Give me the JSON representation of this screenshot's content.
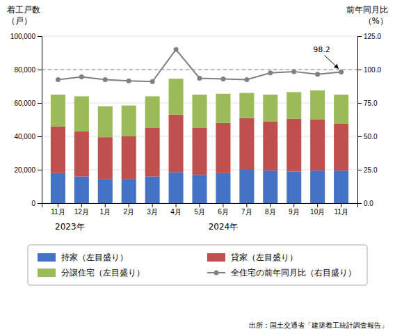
{
  "chart_data": {
    "type": "bar",
    "stacked": true,
    "categories": [
      "11月",
      "12月",
      "1月",
      "2月",
      "3月",
      "4月",
      "5月",
      "6月",
      "7月",
      "8月",
      "9月",
      "10月",
      "11月"
    ],
    "series": [
      {
        "name": "持家（左目盛り）",
        "color": "#4472C4",
        "values": [
          18000,
          16000,
          14500,
          14500,
          16000,
          18500,
          17000,
          18000,
          20000,
          19500,
          19000,
          19500,
          19500
        ]
      },
      {
        "name": "貸家（左目盛り）",
        "color": "#C0504D",
        "values": [
          28000,
          27000,
          25000,
          25500,
          29000,
          34500,
          28000,
          30000,
          31000,
          29500,
          31500,
          30500,
          28000
        ]
      },
      {
        "name": "分譲住宅（左目盛り）",
        "color": "#9BBB59",
        "values": [
          19000,
          21000,
          18500,
          18500,
          19000,
          21500,
          20000,
          17500,
          15000,
          16000,
          16000,
          17500,
          17500
        ]
      },
      {
        "name": "全住宅の前年同月比（右目盛り）",
        "type": "line",
        "axis": "y2",
        "color": "#808080",
        "marker": "circle",
        "line_style": "solid",
        "values": [
          92.5,
          94.5,
          92.5,
          91.5,
          91.0,
          115.0,
          93.5,
          93.0,
          92.5,
          97.5,
          98.5,
          96.5,
          98.2
        ]
      }
    ],
    "ylim": [
      0,
      100000
    ],
    "yticks": [
      0,
      {
        "value": 20000,
        "label": "20,000"
      },
      {
        "value": 40000,
        "label": "40,000"
      },
      {
        "value": 60000,
        "label": "60,000"
      },
      {
        "value": 80000,
        "label": "80,000"
      },
      {
        "value": 100000,
        "label": "100,000"
      }
    ],
    "y2lim": [
      0.0,
      125.0
    ],
    "y2ticks": [
      {
        "value": 0.0,
        "label": "0.0"
      },
      {
        "value": 25.0,
        "label": "25.0"
      },
      {
        "value": 50.0,
        "label": "50.0"
      },
      {
        "value": 75.0,
        "label": "75.0"
      },
      {
        "value": 100.0,
        "label": "100.0"
      },
      {
        "value": 125.0,
        "label": "125.0"
      }
    ],
    "hlines": [
      {
        "y": 100.0,
        "axis": "y2",
        "line_style": "dashed"
      }
    ],
    "ylabel": [
      "着工戸数",
      "（戸）"
    ],
    "y2label": [
      "前年同月比",
      "（%）"
    ],
    "xlabel": [
      "2023年",
      "2024年"
    ],
    "annotations": [
      "98.2"
    ],
    "grid": true,
    "legend": "bottom",
    "source": "出所：国土交通省「建築着工統計調査報告」"
  }
}
